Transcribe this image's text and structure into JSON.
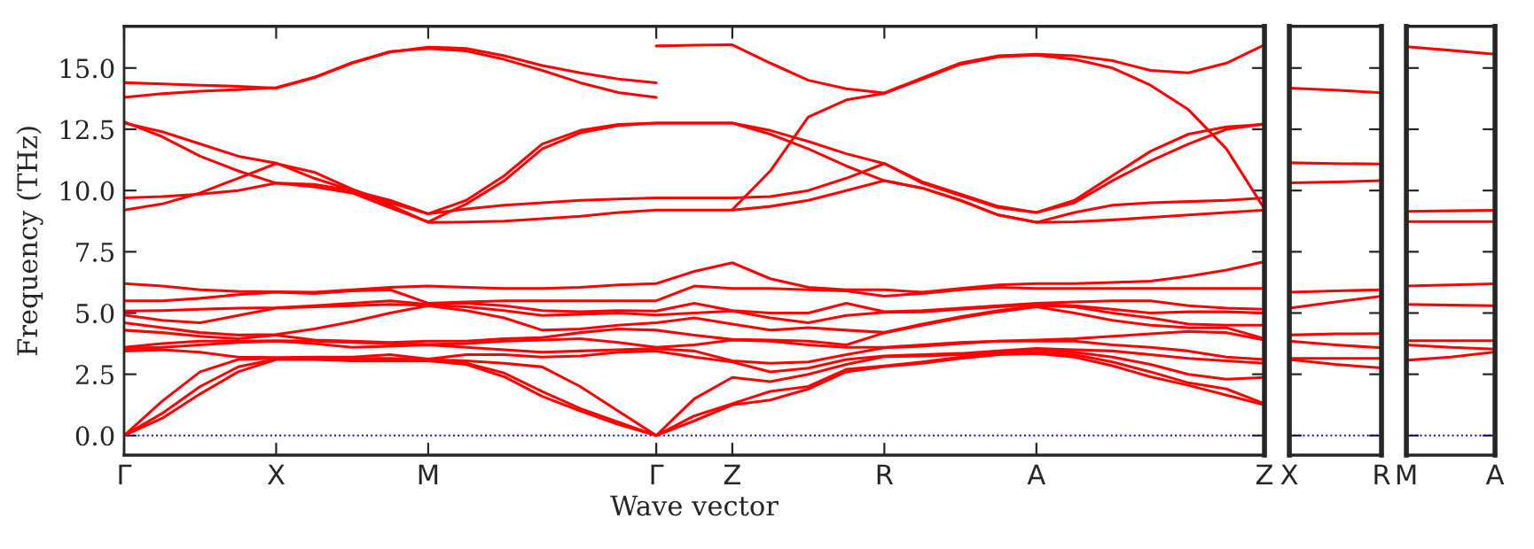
{
  "chart_data": [
    {
      "type": "line",
      "ylabel": "Frequency (THz)",
      "xlabel": "Wave vector",
      "ylim": [
        -0.8,
        16.7
      ],
      "categories": [
        "Γ",
        null,
        null,
        null,
        "X",
        null,
        null,
        null,
        "M",
        null,
        null,
        null,
        null,
        null,
        "Γ",
        null,
        "Z",
        null,
        null,
        null,
        "R",
        null,
        null,
        null,
        "A",
        null,
        null,
        null,
        null,
        null,
        "Z"
      ],
      "yticks": [
        {
          "value": 0,
          "label": "0.0"
        },
        {
          "value": 2.5,
          "label": "2.5"
        },
        {
          "value": 5,
          "label": "5.0"
        },
        {
          "value": 7.5,
          "label": "7.5"
        },
        {
          "value": 10,
          "label": "10.0"
        },
        {
          "value": 12.5,
          "label": "12.5"
        },
        {
          "value": 15,
          "label": "15.0"
        }
      ],
      "ref_lines": [
        {
          "axis": "y",
          "value": 0,
          "color": "#0000ff",
          "line_style": "dotted"
        }
      ],
      "series": [
        {
          "color": "#ff0000",
          "values": [
            14.4,
            14.35,
            14.3,
            14.25,
            14.18,
            14.6,
            15.2,
            15.65,
            15.85,
            15.8,
            15.5,
            15.1,
            14.8,
            14.55,
            14.4,
            null,
            null,
            null,
            null,
            null,
            null,
            null,
            null,
            null,
            null,
            null,
            null,
            null,
            null,
            null,
            null
          ]
        },
        {
          "color": "#ff0000",
          "values": [
            13.8,
            13.95,
            14.05,
            14.12,
            14.2,
            14.62,
            15.22,
            15.67,
            15.8,
            15.7,
            15.35,
            14.9,
            14.4,
            14.0,
            13.8,
            null,
            null,
            null,
            null,
            null,
            null,
            null,
            null,
            null,
            null,
            null,
            null,
            null,
            null,
            null,
            null
          ]
        },
        {
          "color": "#ff0000",
          "values": [
            null,
            null,
            null,
            null,
            null,
            null,
            null,
            null,
            null,
            null,
            null,
            null,
            null,
            null,
            15.9,
            15.93,
            15.95,
            15.2,
            14.5,
            14.15,
            13.98,
            14.6,
            15.2,
            15.5,
            15.56,
            15.5,
            15.3,
            14.9,
            14.8,
            15.2,
            15.95
          ]
        },
        {
          "color": "#ff0000",
          "values": [
            null,
            null,
            null,
            null,
            null,
            null,
            null,
            null,
            null,
            null,
            null,
            null,
            null,
            null,
            null,
            null,
            9.22,
            10.8,
            13.0,
            13.7,
            13.96,
            14.55,
            15.15,
            15.45,
            15.53,
            15.35,
            15.0,
            14.3,
            13.3,
            11.7,
            9.25
          ]
        },
        {
          "color": "#ff0000",
          "values": [
            9.7,
            9.75,
            9.85,
            10.0,
            10.3,
            10.25,
            10.0,
            9.4,
            8.7,
            8.71,
            8.75,
            8.85,
            8.95,
            9.1,
            9.2,
            9.2,
            9.2,
            9.35,
            9.6,
            10.0,
            10.4,
            10.1,
            9.6,
            9.0,
            8.7,
            8.72,
            8.8,
            8.9,
            9.0,
            9.1,
            9.2
          ]
        },
        {
          "color": "#ff0000",
          "values": [
            9.2,
            9.45,
            9.9,
            10.5,
            11.1,
            10.75,
            10.05,
            9.5,
            9.05,
            9.25,
            9.4,
            9.5,
            9.6,
            9.65,
            9.7,
            9.7,
            9.7,
            9.75,
            10.0,
            10.5,
            11.1,
            10.3,
            9.8,
            9.3,
            9.1,
            9.6,
            10.6,
            11.6,
            12.3,
            12.6,
            12.7
          ]
        },
        {
          "color": "#ff0000",
          "values": [
            12.75,
            12.4,
            11.9,
            11.4,
            11.12,
            10.5,
            10.0,
            9.6,
            9.05,
            9.6,
            10.6,
            11.9,
            12.45,
            12.7,
            12.75,
            12.75,
            12.75,
            12.3,
            11.7,
            11.0,
            10.4,
            10.1,
            9.6,
            9.0,
            8.7,
            9.1,
            9.4,
            9.5,
            9.55,
            9.6,
            9.7
          ]
        },
        {
          "color": "#ff0000",
          "values": [
            12.8,
            12.2,
            11.4,
            10.8,
            10.3,
            10.15,
            9.9,
            9.3,
            8.72,
            9.45,
            10.4,
            11.7,
            12.35,
            12.65,
            12.75,
            12.75,
            12.75,
            12.45,
            12.0,
            11.5,
            11.1,
            10.35,
            9.85,
            9.35,
            9.1,
            9.5,
            10.4,
            11.2,
            11.9,
            12.5,
            12.72
          ]
        },
        {
          "color": "#ff0000",
          "values": [
            0,
            0.7,
            1.7,
            2.6,
            3.1,
            3.1,
            3.05,
            3.05,
            3.05,
            2.9,
            2.4,
            1.6,
            1.0,
            0.45,
            0,
            0.6,
            1.25,
            1.45,
            1.9,
            2.6,
            2.81,
            2.95,
            3.15,
            3.3,
            3.35,
            3.2,
            2.85,
            2.4,
            2.05,
            1.65,
            1.25
          ]
        },
        {
          "color": "#ff0000",
          "values": [
            0,
            0.9,
            2.0,
            2.8,
            3.12,
            3.13,
            3.1,
            3.07,
            3.07,
            2.95,
            2.55,
            1.8,
            1.1,
            0.55,
            0,
            0.8,
            1.3,
            1.8,
            2.0,
            2.7,
            2.84,
            3.0,
            3.2,
            3.35,
            3.4,
            3.3,
            3.0,
            2.6,
            2.15,
            1.9,
            1.3
          ]
        },
        {
          "color": "#ff0000",
          "values": [
            0,
            1.4,
            2.6,
            3.1,
            3.15,
            3.17,
            3.15,
            3.15,
            3.1,
            3.05,
            2.95,
            2.8,
            2.0,
            1.0,
            0,
            1.5,
            2.37,
            2.2,
            2.5,
            2.9,
            3.22,
            3.25,
            3.3,
            3.4,
            3.5,
            3.4,
            3.2,
            2.9,
            2.5,
            2.3,
            2.37
          ]
        },
        {
          "color": "#ff0000",
          "values": [
            3.45,
            3.5,
            3.4,
            3.2,
            3.18,
            3.2,
            3.2,
            3.3,
            3.12,
            3.3,
            3.3,
            3.2,
            3.25,
            3.4,
            3.45,
            3.2,
            3.0,
            2.6,
            2.75,
            3.1,
            3.25,
            3.3,
            3.35,
            3.45,
            3.55,
            3.5,
            3.45,
            3.3,
            3.15,
            3.05,
            2.95
          ]
        },
        {
          "color": "#ff0000",
          "values": [
            3.55,
            3.6,
            3.7,
            3.8,
            3.85,
            3.75,
            3.6,
            3.65,
            3.7,
            3.6,
            3.5,
            3.4,
            3.45,
            3.5,
            3.55,
            3.45,
            3.05,
            2.95,
            3.0,
            3.3,
            3.58,
            3.65,
            3.75,
            3.85,
            3.85,
            3.85,
            3.7,
            3.6,
            3.45,
            3.2,
            3.1
          ]
        },
        {
          "color": "#ff0000",
          "values": [
            3.6,
            3.75,
            3.85,
            3.85,
            3.87,
            3.85,
            3.8,
            3.75,
            3.72,
            3.75,
            3.85,
            3.9,
            3.95,
            3.8,
            3.6,
            3.7,
            3.9,
            3.85,
            3.7,
            3.6,
            3.6,
            3.7,
            3.8,
            3.85,
            3.9,
            3.95,
            4.05,
            4.15,
            4.25,
            4.2,
            3.9
          ]
        },
        {
          "color": "#ff0000",
          "values": [
            4.3,
            4.2,
            4.05,
            3.95,
            4.1,
            3.9,
            3.85,
            3.8,
            3.85,
            3.85,
            3.95,
            4.0,
            4.2,
            4.35,
            4.3,
            4.1,
            3.92,
            3.9,
            3.85,
            3.7,
            4.19,
            4.5,
            4.8,
            5.05,
            5.25,
            5.0,
            4.7,
            4.5,
            4.4,
            4.4,
            3.95
          ]
        },
        {
          "color": "#ff0000",
          "values": [
            4.6,
            4.4,
            4.2,
            4.1,
            4.12,
            4.35,
            4.65,
            5.0,
            5.3,
            5.1,
            4.8,
            4.3,
            4.35,
            4.5,
            4.6,
            4.8,
            4.55,
            4.3,
            4.4,
            4.3,
            4.21,
            4.55,
            4.85,
            5.1,
            5.3,
            5.25,
            5.0,
            4.8,
            4.55,
            4.5,
            4.5
          ]
        },
        {
          "color": "#ff0000",
          "values": [
            4.92,
            4.7,
            4.6,
            4.9,
            5.2,
            5.25,
            5.3,
            5.35,
            5.32,
            5.25,
            5.1,
            4.9,
            4.95,
            5.0,
            4.92,
            5.0,
            5.08,
            4.8,
            4.6,
            4.9,
            5.03,
            5.05,
            5.15,
            5.25,
            5.35,
            5.3,
            5.15,
            5.0,
            5.05,
            5.05,
            5.0
          ]
        },
        {
          "color": "#ff0000",
          "values": [
            5.08,
            5.1,
            5.15,
            5.2,
            5.22,
            5.3,
            5.4,
            5.5,
            5.35,
            5.4,
            5.3,
            5.1,
            5.05,
            5.1,
            5.08,
            5.4,
            5.1,
            5.0,
            5.0,
            5.4,
            5.05,
            5.1,
            5.2,
            5.3,
            5.4,
            5.45,
            5.5,
            5.5,
            5.3,
            5.2,
            5.15
          ]
        },
        {
          "color": "#ff0000",
          "values": [
            5.5,
            5.5,
            5.6,
            5.75,
            5.85,
            5.8,
            5.9,
            5.95,
            5.4,
            5.45,
            5.5,
            5.5,
            5.5,
            5.5,
            5.5,
            6.1,
            6.0,
            6.0,
            5.95,
            5.9,
            5.69,
            5.8,
            5.95,
            6.05,
            6.0,
            6.0,
            6.0,
            6.0,
            6.0,
            6.0,
            6.0
          ]
        },
        {
          "color": "#ff0000",
          "values": [
            6.2,
            6.1,
            5.95,
            5.88,
            5.87,
            5.85,
            5.95,
            6.05,
            6.1,
            6.05,
            6.0,
            6.0,
            6.05,
            6.15,
            6.2,
            6.7,
            7.05,
            6.4,
            6.05,
            5.95,
            5.95,
            5.85,
            6.0,
            6.15,
            6.2,
            6.2,
            6.25,
            6.3,
            6.5,
            6.75,
            7.1
          ]
        }
      ]
    },
    {
      "type": "line",
      "tick_labels": "x",
      "ylim": [
        -0.8,
        16.7
      ],
      "categories": [
        "X",
        null,
        "R"
      ],
      "yticks": [
        {
          "value": 0,
          "label": null
        },
        {
          "value": 2.5,
          "label": null
        },
        {
          "value": 5,
          "label": null
        },
        {
          "value": 7.5,
          "label": null
        },
        {
          "value": 10,
          "label": null
        },
        {
          "value": 12.5,
          "label": null
        },
        {
          "value": 15,
          "label": null
        }
      ],
      "ref_lines": [
        {
          "axis": "y",
          "value": 0,
          "color": "#0000ff",
          "line_style": "dotted"
        }
      ],
      "series": [
        {
          "color": "#ff0000",
          "values": [
            14.18,
            14.1,
            13.99
          ]
        },
        {
          "color": "#ff0000",
          "values": [
            11.13,
            11.1,
            11.08
          ]
        },
        {
          "color": "#ff0000",
          "values": [
            10.31,
            10.35,
            10.4
          ]
        },
        {
          "color": "#ff0000",
          "values": [
            5.85,
            5.9,
            5.95
          ]
        },
        {
          "color": "#ff0000",
          "values": [
            5.2,
            5.45,
            5.69
          ]
        },
        {
          "color": "#ff0000",
          "values": [
            4.1,
            4.15,
            4.16
          ]
        },
        {
          "color": "#ff0000",
          "values": [
            3.85,
            3.7,
            3.58
          ]
        },
        {
          "color": "#ff0000",
          "values": [
            3.15,
            3.15,
            3.15
          ]
        },
        {
          "color": "#ff0000",
          "values": [
            3.1,
            2.9,
            2.76
          ]
        }
      ]
    },
    {
      "type": "line",
      "tick_labels": "x",
      "ylim": [
        -0.8,
        16.7
      ],
      "categories": [
        "M",
        null,
        "A"
      ],
      "yticks": [
        {
          "value": 0,
          "label": null
        },
        {
          "value": 2.5,
          "label": null
        },
        {
          "value": 5,
          "label": null
        },
        {
          "value": 7.5,
          "label": null
        },
        {
          "value": 10,
          "label": null
        },
        {
          "value": 12.5,
          "label": null
        },
        {
          "value": 15,
          "label": null
        }
      ],
      "ref_lines": [
        {
          "axis": "y",
          "value": 0,
          "color": "#0000ff",
          "line_style": "dotted"
        }
      ],
      "series": [
        {
          "color": "#ff0000",
          "values": [
            15.87,
            15.72,
            15.56
          ]
        },
        {
          "color": "#ff0000",
          "values": [
            9.15,
            9.17,
            9.19
          ]
        },
        {
          "color": "#ff0000",
          "values": [
            8.73,
            8.73,
            8.73
          ]
        },
        {
          "color": "#ff0000",
          "values": [
            6.1,
            6.15,
            6.19
          ]
        },
        {
          "color": "#ff0000",
          "values": [
            5.35,
            5.32,
            5.3
          ]
        },
        {
          "color": "#ff0000",
          "values": [
            3.87,
            3.87,
            3.87
          ]
        },
        {
          "color": "#ff0000",
          "values": [
            3.7,
            3.6,
            3.53
          ]
        },
        {
          "color": "#ff0000",
          "values": [
            3.07,
            3.2,
            3.41
          ]
        }
      ]
    }
  ]
}
